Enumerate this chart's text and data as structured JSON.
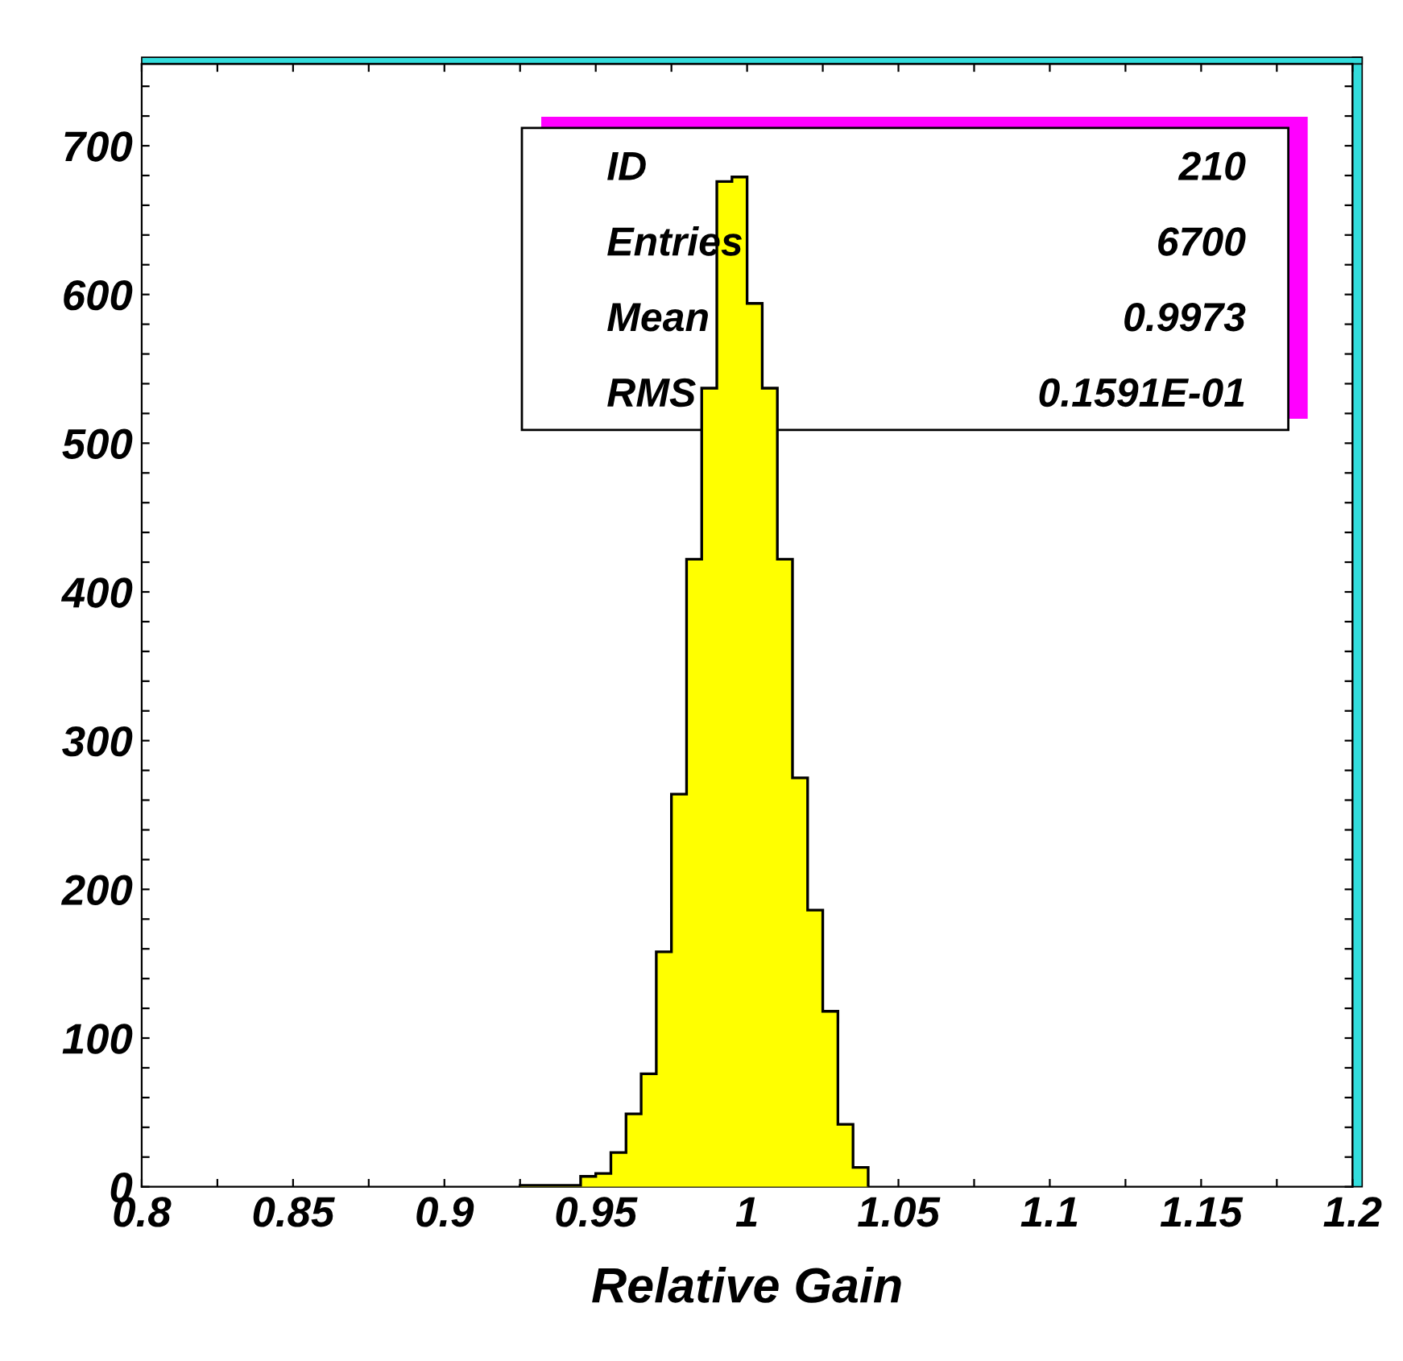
{
  "chart_data": {
    "type": "histogram",
    "xlabel": "Relative Gain",
    "bins": [
      0.925,
      0.93,
      0.935,
      0.94,
      0.945,
      0.95,
      0.955,
      0.96,
      0.965,
      0.97,
      0.975,
      0.98,
      0.985,
      0.99,
      0.995,
      1.0,
      1.005,
      1.01,
      1.015,
      1.02,
      1.025,
      1.03,
      1.035,
      1.04
    ],
    "values": [
      1,
      1,
      1,
      1,
      7,
      9,
      23,
      49,
      76,
      158,
      264,
      422,
      537,
      676,
      679,
      594,
      537,
      422,
      275,
      186,
      118,
      42,
      13
    ],
    "color": "#ffff00",
    "xlim": [
      0.8,
      1.2
    ],
    "ylim": [
      0,
      755
    ],
    "xticks": [
      0.8,
      {
        "value": 0.825,
        "label": null
      },
      0.85,
      {
        "value": 0.875,
        "label": null
      },
      0.9,
      {
        "value": 0.925,
        "label": null
      },
      0.95,
      {
        "value": 0.975,
        "label": null
      },
      1,
      {
        "value": 1.025,
        "label": null
      },
      1.05,
      {
        "value": 1.075,
        "label": null
      },
      1.1,
      {
        "value": 1.125,
        "label": null
      },
      1.15,
      {
        "value": 1.175,
        "label": null
      },
      1.2
    ],
    "yticks": [
      0,
      {
        "value": 20,
        "label": null
      },
      {
        "value": 40,
        "label": null
      },
      {
        "value": 60,
        "label": null
      },
      {
        "value": 80,
        "label": null
      },
      100,
      {
        "value": 120,
        "label": null
      },
      {
        "value": 140,
        "label": null
      },
      {
        "value": 160,
        "label": null
      },
      {
        "value": 180,
        "label": null
      },
      200,
      {
        "value": 220,
        "label": null
      },
      {
        "value": 240,
        "label": null
      },
      {
        "value": 260,
        "label": null
      },
      {
        "value": 280,
        "label": null
      },
      300,
      {
        "value": 320,
        "label": null
      },
      {
        "value": 340,
        "label": null
      },
      {
        "value": 360,
        "label": null
      },
      {
        "value": 380,
        "label": null
      },
      400,
      {
        "value": 420,
        "label": null
      },
      {
        "value": 440,
        "label": null
      },
      {
        "value": 460,
        "label": null
      },
      {
        "value": 480,
        "label": null
      },
      500,
      {
        "value": 520,
        "label": null
      },
      {
        "value": 540,
        "label": null
      },
      {
        "value": 560,
        "label": null
      },
      {
        "value": 580,
        "label": null
      },
      600,
      {
        "value": 620,
        "label": null
      },
      {
        "value": 640,
        "label": null
      },
      {
        "value": 660,
        "label": null
      },
      {
        "value": 680,
        "label": null
      },
      700,
      {
        "value": 720,
        "label": null
      },
      {
        "value": 740,
        "label": null
      }
    ],
    "grid": false,
    "annotations": [
      "ID",
      "210",
      "Entries",
      "6700",
      "Mean",
      "0.9973",
      "RMS",
      "0.1591E-01"
    ]
  }
}
